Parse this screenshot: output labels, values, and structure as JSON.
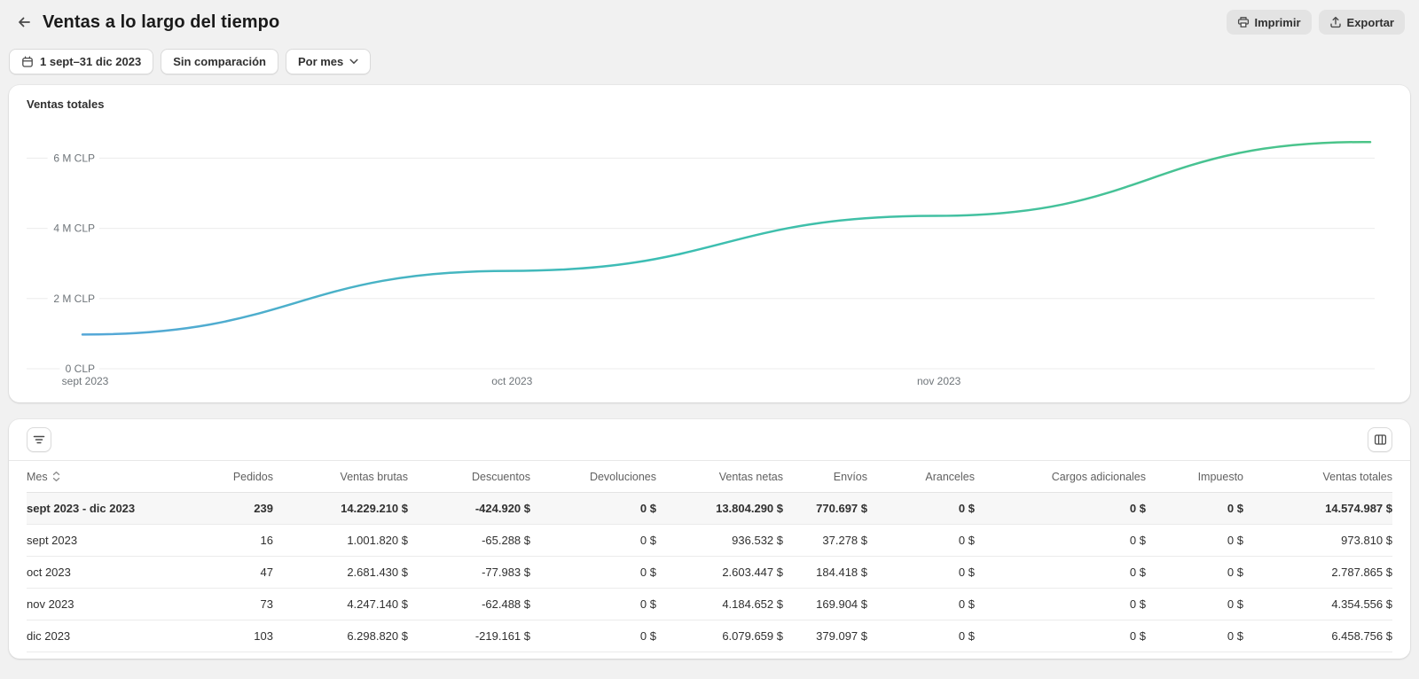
{
  "header": {
    "title": "Ventas a lo largo del tiempo",
    "print_label": "Imprimir",
    "export_label": "Exportar"
  },
  "filters": {
    "date_range": "1 sept–31 dic 2023",
    "comparison": "Sin comparación",
    "granularity": "Por mes"
  },
  "chart": {
    "title": "Ventas totales"
  },
  "chart_data": {
    "type": "line",
    "title": "Ventas totales",
    "x": [
      "sept 2023",
      "oct 2023",
      "nov 2023",
      "dic 2023"
    ],
    "values_clp": [
      973810,
      2787865,
      4354556,
      6458756
    ],
    "x_axis_labels": [
      "sept 2023",
      "oct 2023",
      "nov 2023",
      ""
    ],
    "y_ticks": [
      "0 CLP",
      "2 M CLP",
      "4 M CLP",
      "6 M CLP"
    ],
    "ylabel": "CLP",
    "ylim": [
      0,
      6800000
    ],
    "grid": true,
    "legend": false,
    "line_gradient": [
      "#55A7D8",
      "#3CBEB3",
      "#4BC487"
    ],
    "gridline_color": "#ececec",
    "axis_label_color": "#6e7479"
  },
  "table": {
    "columns": [
      "Mes",
      "Pedidos",
      "Ventas brutas",
      "Descuentos",
      "Devoluciones",
      "Ventas netas",
      "Envíos",
      "Aranceles",
      "Cargos adicionales",
      "Impuesto",
      "Ventas totales"
    ],
    "summary_row": [
      "sept 2023 - dic 2023",
      "239",
      "14.229.210 $",
      "-424.920 $",
      "0 $",
      "13.804.290 $",
      "770.697 $",
      "0 $",
      "0 $",
      "0 $",
      "14.574.987 $"
    ],
    "rows": [
      [
        "sept 2023",
        "16",
        "1.001.820 $",
        "-65.288 $",
        "0 $",
        "936.532 $",
        "37.278 $",
        "0 $",
        "0 $",
        "0 $",
        "973.810 $"
      ],
      [
        "oct 2023",
        "47",
        "2.681.430 $",
        "-77.983 $",
        "0 $",
        "2.603.447 $",
        "184.418 $",
        "0 $",
        "0 $",
        "0 $",
        "2.787.865 $"
      ],
      [
        "nov 2023",
        "73",
        "4.247.140 $",
        "-62.488 $",
        "0 $",
        "4.184.652 $",
        "169.904 $",
        "0 $",
        "0 $",
        "0 $",
        "4.354.556 $"
      ],
      [
        "dic 2023",
        "103",
        "6.298.820 $",
        "-219.161 $",
        "0 $",
        "6.079.659 $",
        "379.097 $",
        "0 $",
        "0 $",
        "0 $",
        "6.458.756 $"
      ]
    ]
  }
}
